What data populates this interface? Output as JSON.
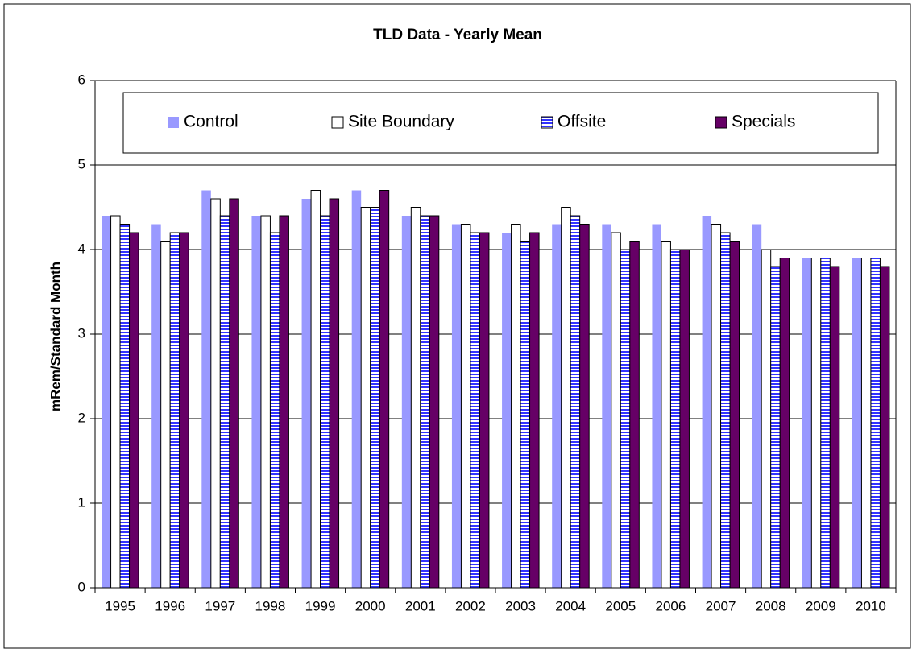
{
  "chart_data": {
    "type": "bar",
    "title": "TLD Data - Yearly Mean",
    "y_label": "mRem/Standard Month",
    "categories": [
      "1995",
      "1996",
      "1997",
      "1998",
      "1999",
      "2000",
      "2001",
      "2002",
      "2003",
      "2004",
      "2005",
      "2006",
      "2007",
      "2008",
      "2009",
      "2010"
    ],
    "series": [
      {
        "name": "Control",
        "color": "#9999ff",
        "stroke": "none",
        "values": [
          4.4,
          4.3,
          4.7,
          4.4,
          4.6,
          4.7,
          4.4,
          4.3,
          4.2,
          4.3,
          4.3,
          4.3,
          4.4,
          4.3,
          3.9,
          3.9
        ]
      },
      {
        "name": "Site Boundary",
        "color": "#ffffff",
        "stroke": "#000000",
        "values": [
          4.4,
          4.1,
          4.6,
          4.4,
          4.7,
          4.5,
          4.5,
          4.3,
          4.3,
          4.5,
          4.2,
          4.1,
          4.3,
          4.0,
          3.9,
          3.9
        ]
      },
      {
        "name": "Offsite",
        "color": "#3333ff",
        "stroke": "#000000",
        "pattern": "horizontal-stripes",
        "values": [
          4.3,
          4.2,
          4.4,
          4.2,
          4.4,
          4.5,
          4.4,
          4.2,
          4.1,
          4.4,
          4.0,
          4.0,
          4.2,
          3.8,
          3.9,
          3.9
        ]
      },
      {
        "name": "Specials",
        "color": "#660066",
        "stroke": "#000000",
        "values": [
          4.2,
          4.2,
          4.6,
          4.4,
          4.6,
          4.7,
          4.4,
          4.2,
          4.2,
          4.3,
          4.1,
          4.0,
          4.1,
          3.9,
          3.8,
          3.8
        ]
      }
    ],
    "ylim": [
      0,
      6
    ],
    "yticks": [
      0,
      1,
      2,
      3,
      4,
      5,
      6
    ],
    "grid": true,
    "legend": "top"
  }
}
